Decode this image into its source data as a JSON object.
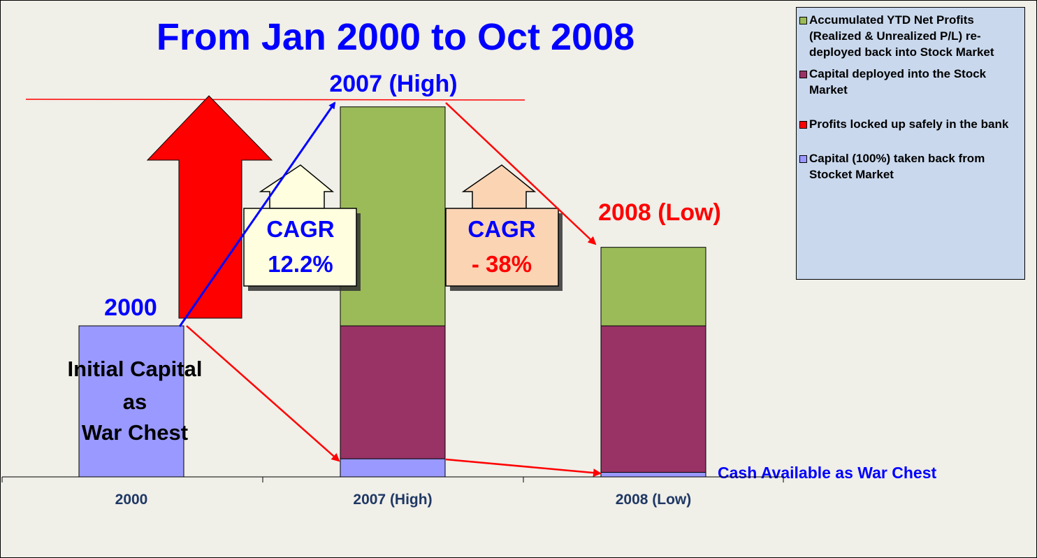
{
  "chart_data": {
    "type": "bar",
    "stacked": true,
    "title": "From Jan 2000 to Oct 2008",
    "categories": [
      "2000",
      "2007 (High)",
      "2008 (Low)"
    ],
    "series": [
      {
        "name": "Capital (100%) taken back from Stocket Market",
        "color": "#9999ff",
        "values": [
          100,
          12,
          3
        ]
      },
      {
        "name": "Profits locked up safely in the bank",
        "color": "#ff0000",
        "values": [
          0,
          0,
          0
        ]
      },
      {
        "name": "Capital deployed into the Stock Market",
        "color": "#993366",
        "values": [
          0,
          88,
          97
        ]
      },
      {
        "name": "Accumulated YTD Net Profits (Realized & Unrealized P/L) re-deployed back into Stock Market",
        "color": "#9bbb59",
        "values": [
          0,
          145,
          52
        ]
      }
    ],
    "ylim": [
      0,
      250
    ],
    "legend_position": "right",
    "annotations": {
      "bar_labels": [
        "2000",
        "2007 (High)",
        "2008 (Low)"
      ],
      "initial_capital": [
        "Initial Capital",
        "as",
        "War Chest"
      ],
      "cagr_up": {
        "title": "CAGR",
        "value": "12.2%"
      },
      "cagr_down": {
        "title": "CAGR",
        "value": "- 38%"
      },
      "cash_note": "Cash Available as War Chest"
    }
  },
  "colors": {
    "background": "#f0efe8",
    "title": "#0000ff",
    "negative": "#ff0000",
    "axis_labels": "#1f3864",
    "legend_bg": "#c9d8ed",
    "cagr_up_box": "#ffffe0",
    "cagr_down_box": "#fbd4b4"
  }
}
